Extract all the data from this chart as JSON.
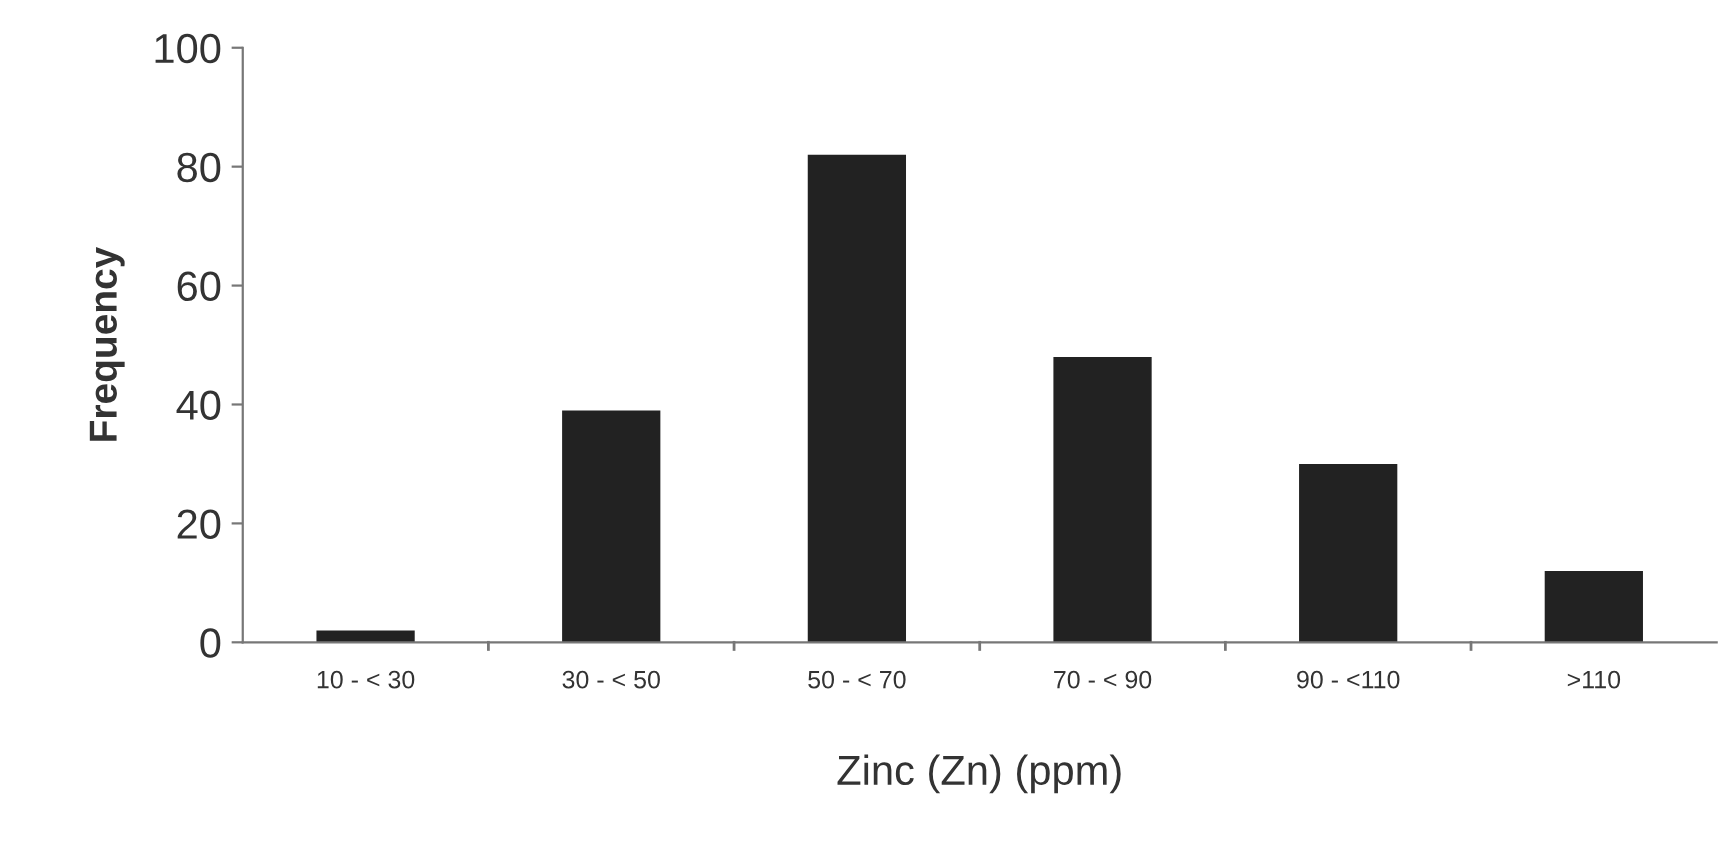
{
  "chart_data": {
    "type": "bar",
    "xlabel": "Zinc (Zn) (ppm)",
    "ylabel": "Frequency",
    "categories": [
      "10 - < 30",
      "30 - < 50",
      "50 - < 70",
      "70 - < 90",
      "90 - <110",
      ">110"
    ],
    "values": [
      2,
      39,
      82,
      48,
      30,
      12
    ],
    "color": "#222222",
    "ylim": [
      0,
      100
    ],
    "yticks": [
      0,
      20,
      40,
      60,
      80,
      100
    ],
    "grid": false,
    "legend": false
  }
}
